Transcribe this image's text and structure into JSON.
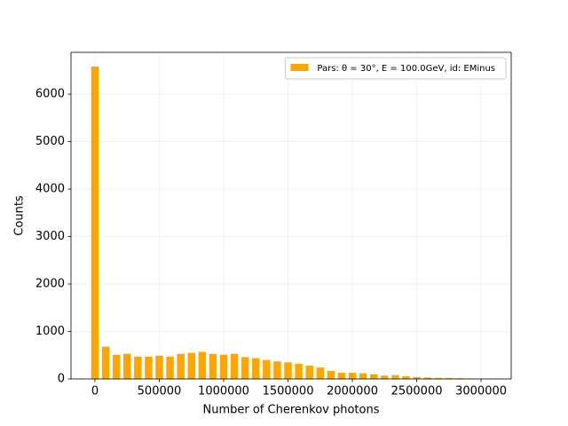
{
  "chart_data": {
    "type": "histogram",
    "xlabel": "Number of Cherenkov photons",
    "ylabel": "Counts",
    "legend_loc": "upper right",
    "grid": true,
    "series": [
      {
        "name": "Pars: θ = 30°, E = 100.0GeV, id: EMinus",
        "color": "#ffa500",
        "bins": [
          -41667,
          41667,
          125000,
          208333,
          291667,
          375000,
          458333,
          541667,
          625000,
          708333,
          791667,
          875000,
          958333,
          1041667,
          1125000,
          1208333,
          1291667,
          1375000,
          1458333,
          1541667,
          1625000,
          1708333,
          1791667,
          1875000,
          1958333,
          2041667,
          2125000,
          2208333,
          2291667,
          2375000,
          2458333,
          2541667,
          2625000,
          2708333,
          2791667,
          2875000,
          2958333,
          3041667
        ],
        "values": [
          6580,
          680,
          510,
          530,
          470,
          470,
          490,
          470,
          530,
          550,
          570,
          530,
          510,
          530,
          460,
          440,
          400,
          370,
          350,
          320,
          280,
          240,
          170,
          130,
          130,
          120,
          100,
          70,
          80,
          60,
          40,
          30,
          20,
          20,
          15,
          10,
          5
        ]
      }
    ],
    "xlim": [
      -186000,
      3234000
    ],
    "xticks": [
      0,
      500000,
      1000000,
      1500000,
      2000000,
      2500000,
      3000000
    ],
    "ylim": [
      0,
      6880
    ],
    "yticks": [
      0,
      1000,
      2000,
      3000,
      4000,
      5000,
      6000
    ]
  }
}
